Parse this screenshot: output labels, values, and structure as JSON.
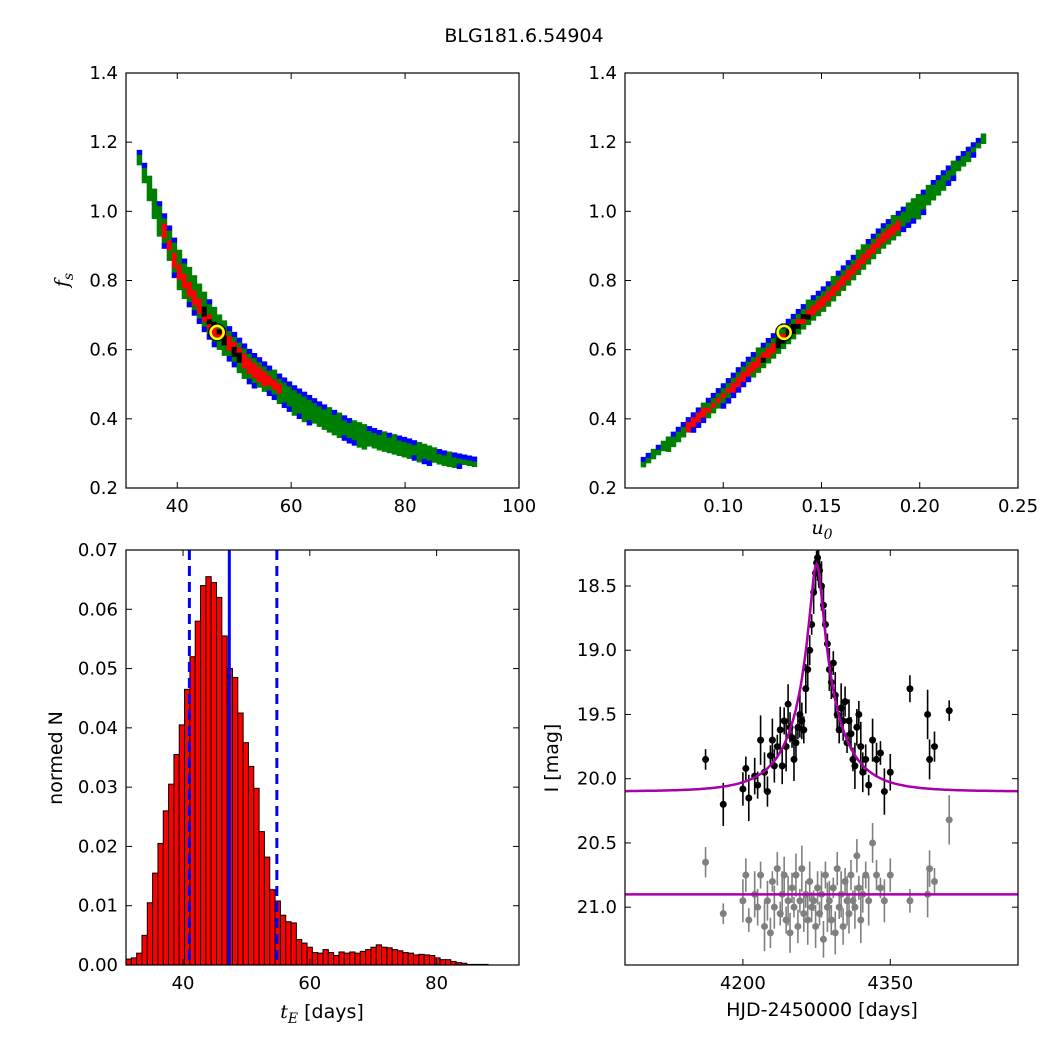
{
  "figure": {
    "title": "BLG181.6.54904"
  },
  "chart_data": [
    {
      "id": "fs_vs_tE",
      "type": "heatmap",
      "xlabel": "",
      "ylabel": "f_s",
      "xlim": [
        31,
        100
      ],
      "ylim": [
        0.2,
        1.4
      ],
      "xticks": [
        40,
        60,
        80,
        100
      ],
      "yticks": [
        0.2,
        0.4,
        0.6,
        0.8,
        1.0,
        1.2,
        1.4
      ],
      "colors": {
        "outer": "#0000ff",
        "middle": "#008000",
        "inner": "#ff0000",
        "core": "#000000",
        "best_fit": "#ffff00"
      },
      "best_fit": {
        "x": 47,
        "y": 0.65
      },
      "ridge_curve": [
        [
          32,
          1.2
        ],
        [
          34,
          1.1
        ],
        [
          36,
          1.0
        ],
        [
          40,
          0.83
        ],
        [
          44,
          0.72
        ],
        [
          47,
          0.65
        ],
        [
          52,
          0.56
        ],
        [
          56,
          0.51
        ],
        [
          60,
          0.46
        ],
        [
          65,
          0.41
        ],
        [
          70,
          0.37
        ],
        [
          75,
          0.34
        ],
        [
          80,
          0.32
        ],
        [
          86,
          0.29
        ],
        [
          92,
          0.28
        ]
      ],
      "width_curve": [
        0.015,
        0.03,
        0.045,
        0.055,
        0.055,
        0.05,
        0.045,
        0.04,
        0.038,
        0.035,
        0.03,
        0.028,
        0.025,
        0.02,
        0.01
      ],
      "red_range": [
        37,
        58
      ]
    },
    {
      "id": "fs_vs_u0",
      "type": "heatmap",
      "xlabel": "u_0",
      "ylabel": "",
      "xlim": [
        0.05,
        0.25
      ],
      "ylim": [
        0.2,
        1.4
      ],
      "xticks": [
        0.1,
        0.15,
        0.2,
        0.25
      ],
      "yticks": [
        0.2,
        0.4,
        0.6,
        0.8,
        1.0,
        1.2,
        1.4
      ],
      "colors": {
        "outer": "#0000ff",
        "middle": "#008000",
        "inner": "#ff0000",
        "core": "#000000",
        "best_fit": "#ffff00"
      },
      "best_fit": {
        "x": 0.131,
        "y": 0.65
      },
      "ridge_curve": [
        [
          0.058,
          0.28
        ],
        [
          0.07,
          0.33
        ],
        [
          0.08,
          0.38
        ],
        [
          0.09,
          0.43
        ],
        [
          0.1,
          0.48
        ],
        [
          0.11,
          0.54
        ],
        [
          0.12,
          0.59
        ],
        [
          0.131,
          0.65
        ],
        [
          0.14,
          0.7
        ],
        [
          0.15,
          0.75
        ],
        [
          0.16,
          0.81
        ],
        [
          0.17,
          0.87
        ],
        [
          0.18,
          0.93
        ],
        [
          0.19,
          0.98
        ],
        [
          0.2,
          1.03
        ],
        [
          0.21,
          1.09
        ],
        [
          0.22,
          1.15
        ],
        [
          0.232,
          1.22
        ]
      ],
      "width_curve": [
        0.01,
        0.015,
        0.02,
        0.025,
        0.03,
        0.032,
        0.035,
        0.035,
        0.035,
        0.035,
        0.035,
        0.035,
        0.035,
        0.032,
        0.03,
        0.025,
        0.02,
        0.01
      ],
      "red_range": [
        0.08,
        0.19
      ]
    },
    {
      "id": "tE_histogram",
      "type": "bar",
      "xlabel": "t_E [days]",
      "ylabel": "normed N",
      "xlim": [
        31,
        93
      ],
      "ylim": [
        0,
        0.07
      ],
      "xticks": [
        40,
        60,
        80
      ],
      "yticks": [
        0.0,
        0.01,
        0.02,
        0.03,
        0.04,
        0.05,
        0.06,
        0.07
      ],
      "bin_start": 31,
      "bin_width": 0.84,
      "values": [
        0.001,
        0.0012,
        0.002,
        0.005,
        0.0105,
        0.0155,
        0.0205,
        0.026,
        0.0305,
        0.0355,
        0.0405,
        0.0465,
        0.052,
        0.058,
        0.064,
        0.0655,
        0.0645,
        0.062,
        0.0555,
        0.05,
        0.0485,
        0.0425,
        0.0375,
        0.0335,
        0.0298,
        0.0225,
        0.0182,
        0.0127,
        0.0108,
        0.0084,
        0.0073,
        0.0071,
        0.0043,
        0.0037,
        0.003,
        0.0021,
        0.002,
        0.0026,
        0.0021,
        0.0016,
        0.0022,
        0.002,
        0.0022,
        0.002,
        0.0023,
        0.0026,
        0.003,
        0.0034,
        0.003,
        0.0029,
        0.0026,
        0.0024,
        0.0021,
        0.002,
        0.0017,
        0.0018,
        0.0017,
        0.0016,
        0.0012,
        0.0009,
        0.0009,
        0.0006,
        0.0004,
        0.0003,
        0.0001,
        0.0001,
        0.0001,
        0.0001
      ],
      "bar_color": "#ff0000",
      "median": 47.3,
      "interval": [
        41,
        54.8
      ],
      "line_color": "#0000ff"
    },
    {
      "id": "light_curve",
      "type": "scatter",
      "xlabel": "HJD-2450000 [days]",
      "ylabel": "I [mag]",
      "xlim": [
        4080,
        4480
      ],
      "ylim": [
        21.45,
        18.22
      ],
      "xticks": [
        4200,
        4350
      ],
      "yticks": [
        18.5,
        19.0,
        19.5,
        20.0,
        20.5,
        21.0
      ],
      "model": {
        "t0": 4275,
        "peak": 18.33,
        "baseline": 20.1,
        "u0": 0.131,
        "tE": 47
      },
      "residual_baseline": 20.9,
      "model_color": "#aa00aa",
      "series": [
        {
          "name": "",
          "color": "#000000",
          "points": [
            [
              4162,
              19.85
            ],
            [
              4180,
              20.2
            ],
            [
              4200,
              20.08
            ],
            [
              4203,
              19.92
            ],
            [
              4206,
              20.15
            ],
            [
              4212,
              19.98
            ],
            [
              4215,
              20.05
            ],
            [
              4218,
              19.7
            ],
            [
              4222,
              19.95
            ],
            [
              4225,
              20.1
            ],
            [
              4228,
              19.82
            ],
            [
              4230,
              19.7
            ],
            [
              4232,
              19.9
            ],
            [
              4235,
              19.75
            ],
            [
              4238,
              19.62
            ],
            [
              4240,
              19.9
            ],
            [
              4242,
              19.55
            ],
            [
              4244,
              19.75
            ],
            [
              4246,
              19.42
            ],
            [
              4248,
              19.6
            ],
            [
              4250,
              19.68
            ],
            [
              4252,
              19.85
            ],
            [
              4254,
              19.72
            ],
            [
              4256,
              19.6
            ],
            [
              4258,
              19.5
            ],
            [
              4260,
              19.55
            ],
            [
              4262,
              19.62
            ],
            [
              4264,
              19.3
            ],
            [
              4266,
              19.15
            ],
            [
              4268,
              19.0
            ],
            [
              4270,
              18.8
            ],
            [
              4272,
              18.55
            ],
            [
              4274,
              18.4
            ],
            [
              4275,
              18.32
            ],
            [
              4276,
              18.28
            ],
            [
              4277,
              18.35
            ],
            [
              4278,
              18.38
            ],
            [
              4280,
              18.5
            ],
            [
              4282,
              18.65
            ],
            [
              4284,
              18.8
            ],
            [
              4286,
              18.95
            ],
            [
              4288,
              19.15
            ],
            [
              4290,
              19.25
            ],
            [
              4292,
              19.1
            ],
            [
              4294,
              19.35
            ],
            [
              4296,
              19.5
            ],
            [
              4298,
              19.62
            ],
            [
              4300,
              19.45
            ],
            [
              4302,
              19.55
            ],
            [
              4304,
              19.4
            ],
            [
              4306,
              19.72
            ],
            [
              4308,
              19.55
            ],
            [
              4310,
              19.65
            ],
            [
              4312,
              19.85
            ],
            [
              4314,
              19.9
            ],
            [
              4316,
              19.6
            ],
            [
              4318,
              19.5
            ],
            [
              4320,
              19.75
            ],
            [
              4322,
              19.95
            ],
            [
              4325,
              19.85
            ],
            [
              4328,
              20.05
            ],
            [
              4332,
              19.7
            ],
            [
              4336,
              19.85
            ],
            [
              4340,
              19.8
            ],
            [
              4344,
              20.1
            ],
            [
              4350,
              19.95
            ],
            [
              4370,
              19.3
            ],
            [
              4388,
              19.5
            ],
            [
              4390,
              19.85
            ],
            [
              4395,
              19.75
            ],
            [
              4410,
              19.47
            ]
          ]
        },
        {
          "name": "",
          "color": "#808080",
          "points": [
            [
              4162,
              20.65
            ],
            [
              4180,
              21.05
            ],
            [
              4200,
              20.95
            ],
            [
              4203,
              20.75
            ],
            [
              4206,
              21.1
            ],
            [
              4212,
              20.9
            ],
            [
              4215,
              21.0
            ],
            [
              4218,
              20.75
            ],
            [
              4222,
              21.15
            ],
            [
              4225,
              20.95
            ],
            [
              4228,
              21.2
            ],
            [
              4230,
              20.8
            ],
            [
              4232,
              21.0
            ],
            [
              4235,
              20.7
            ],
            [
              4238,
              21.05
            ],
            [
              4240,
              20.9
            ],
            [
              4242,
              20.75
            ],
            [
              4244,
              21.1
            ],
            [
              4246,
              20.95
            ],
            [
              4248,
              21.2
            ],
            [
              4250,
              20.85
            ],
            [
              4252,
              21.0
            ],
            [
              4254,
              20.75
            ],
            [
              4256,
              21.15
            ],
            [
              4258,
              20.95
            ],
            [
              4260,
              20.7
            ],
            [
              4262,
              21.05
            ],
            [
              4264,
              20.9
            ],
            [
              4266,
              21.1
            ],
            [
              4268,
              20.8
            ],
            [
              4270,
              21.0
            ],
            [
              4272,
              20.95
            ],
            [
              4274,
              21.15
            ],
            [
              4276,
              20.85
            ],
            [
              4278,
              21.05
            ],
            [
              4280,
              20.9
            ],
            [
              4282,
              21.25
            ],
            [
              4284,
              20.75
            ],
            [
              4286,
              21.0
            ],
            [
              4288,
              20.95
            ],
            [
              4290,
              21.1
            ],
            [
              4292,
              20.85
            ],
            [
              4294,
              21.2
            ],
            [
              4296,
              20.7
            ],
            [
              4298,
              21.0
            ],
            [
              4300,
              20.9
            ],
            [
              4302,
              21.15
            ],
            [
              4304,
              20.8
            ],
            [
              4306,
              20.95
            ],
            [
              4308,
              21.05
            ],
            [
              4310,
              20.75
            ],
            [
              4312,
              20.95
            ],
            [
              4314,
              21.0
            ],
            [
              4316,
              20.6
            ],
            [
              4318,
              20.85
            ],
            [
              4320,
              21.1
            ],
            [
              4322,
              20.9
            ],
            [
              4325,
              20.75
            ],
            [
              4328,
              20.95
            ],
            [
              4332,
              20.5
            ],
            [
              4336,
              20.75
            ],
            [
              4340,
              20.85
            ],
            [
              4344,
              20.95
            ],
            [
              4350,
              20.75
            ],
            [
              4370,
              20.95
            ],
            [
              4388,
              20.9
            ],
            [
              4390,
              20.7
            ],
            [
              4395,
              20.8
            ],
            [
              4410,
              20.32
            ]
          ]
        }
      ]
    }
  ]
}
